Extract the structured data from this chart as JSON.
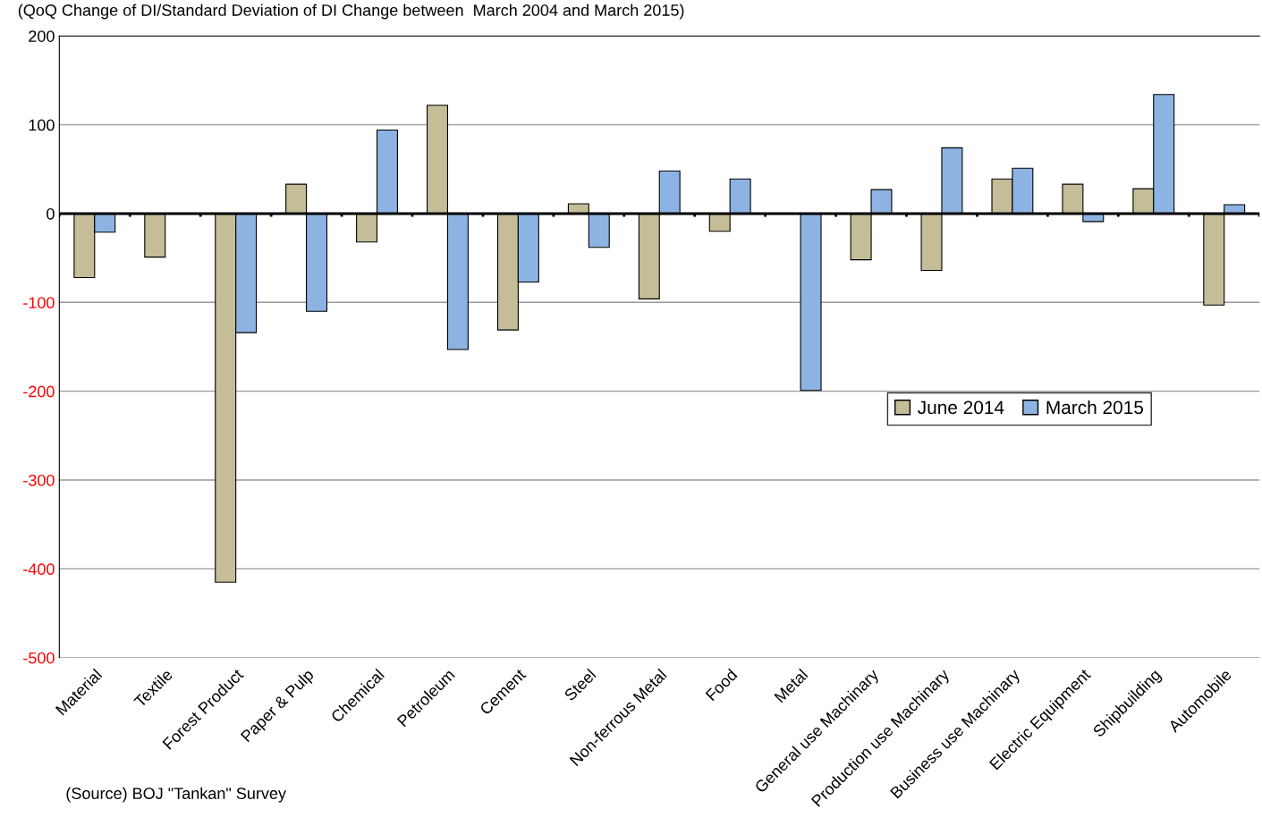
{
  "chart_data": {
    "type": "bar",
    "title": "(QoQ Change of DI/Standard Deviation of DI Change between  March 2004 and March 2015)",
    "categories": [
      "Material",
      "Textile",
      "Forest Product",
      "Paper & Pulp",
      "Chemical",
      "Petroleum",
      "Cement",
      "Steel",
      "Non-ferrous Metal",
      "Food",
      "Metal",
      "General use Machinary",
      "Production use Machinary",
      "Business use Machinary",
      "Electric Equipment",
      "Shipbuilding",
      "Automobile"
    ],
    "series": [
      {
        "name": "June 2014",
        "color": "#c4bd97",
        "values": [
          -72,
          -49,
          -415,
          33,
          -32,
          122,
          -131,
          11,
          -96,
          -20,
          null,
          -52,
          -64,
          39,
          33,
          28,
          -103
        ]
      },
      {
        "name": "March 2015",
        "color": "#8db3e2",
        "values": [
          -21,
          null,
          -134,
          -110,
          94,
          -153,
          -77,
          -38,
          48,
          39,
          -199,
          27,
          74,
          51,
          -9,
          134,
          10
        ]
      }
    ],
    "ylim": [
      -500,
      200
    ],
    "yticks": [
      -500,
      -400,
      -300,
      -200,
      -100,
      0,
      100,
      200
    ],
    "grid": "y",
    "legend": "right",
    "annotations": [
      "(Source) BOJ \"Tankan\" Survey"
    ]
  }
}
